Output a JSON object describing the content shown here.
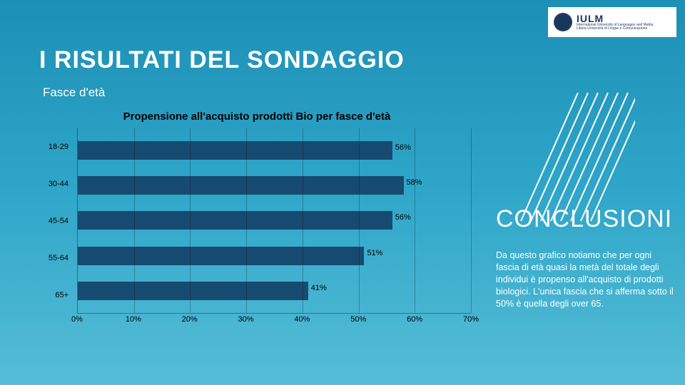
{
  "logo": {
    "main": "IULM",
    "sub1": "International University of Languages and Media",
    "sub2": "Libera Università di Lingue e Comunicazione"
  },
  "title": "I RISULTATI DEL SONDAGGIO",
  "subtitle": "Fasce d'età",
  "chart": {
    "type": "bar-horizontal",
    "title": "Propensione all'acquisto prodotti Bio per fasce d'età",
    "categories": [
      "18-29",
      "30-44",
      "45-54",
      "55-64",
      "65+"
    ],
    "values": [
      56,
      58,
      56,
      51,
      41
    ],
    "value_labels": [
      "56%",
      "58%",
      "56%",
      "51%",
      "41%"
    ],
    "bar_color": "#174a70",
    "grid_color": "rgba(0,0,0,.25)",
    "xmin": 0,
    "xmax": 70,
    "xtick_step": 10,
    "x_ticks": [
      "0%",
      "10%",
      "20%",
      "30%",
      "40%",
      "50%",
      "60%",
      "70%"
    ],
    "label_fontsize": 11,
    "title_fontsize": 15,
    "background": "transparent"
  },
  "conclusion": {
    "heading": "CONCLUSIONI",
    "body": "Da questo grafico notiamo che per ogni fascia di età quasi la metà del totale degli individui è propenso all'acquisto di prodotti biologici. L'unica fascia che si afferma sotto il 50% è quella degli over 65."
  },
  "stripes": {
    "color": "#ffffff",
    "count": 8,
    "angle": 35,
    "stroke": 2
  }
}
